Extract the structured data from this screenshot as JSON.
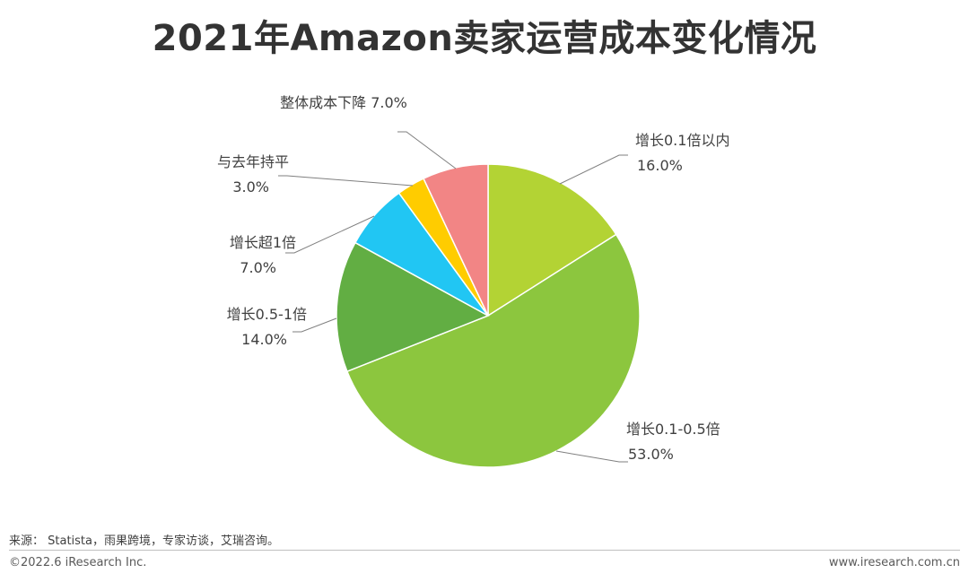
{
  "chart_data": {
    "type": "pie",
    "title": "2021年Amazon卖家运营成本变化情况",
    "slices": [
      {
        "label": "增长0.1倍以内",
        "value": 16.0,
        "value_label": "16.0%",
        "color": "#b3d334"
      },
      {
        "label": "增长0.1-0.5倍",
        "value": 53.0,
        "value_label": "53.0%",
        "color": "#8cc63e"
      },
      {
        "label": "增长0.5-1倍",
        "value": 14.0,
        "value_label": "14.0%",
        "color": "#62ae43"
      },
      {
        "label": "增长超1倍",
        "value": 7.0,
        "value_label": "7.0%",
        "color": "#21c6f3"
      },
      {
        "label": "与去年持平",
        "value": 3.0,
        "value_label": "3.0%",
        "color": "#ffcc00"
      },
      {
        "label": "整体成本下降",
        "value": 7.0,
        "value_label": "7.0%",
        "color": "#f28585"
      }
    ]
  },
  "footer": {
    "source": "来源： Statista，雨果跨境，专家访谈，艾瑞咨询。",
    "copyright": "©2022.6 iResearch Inc.",
    "website": "www.iresearch.com.cn"
  }
}
